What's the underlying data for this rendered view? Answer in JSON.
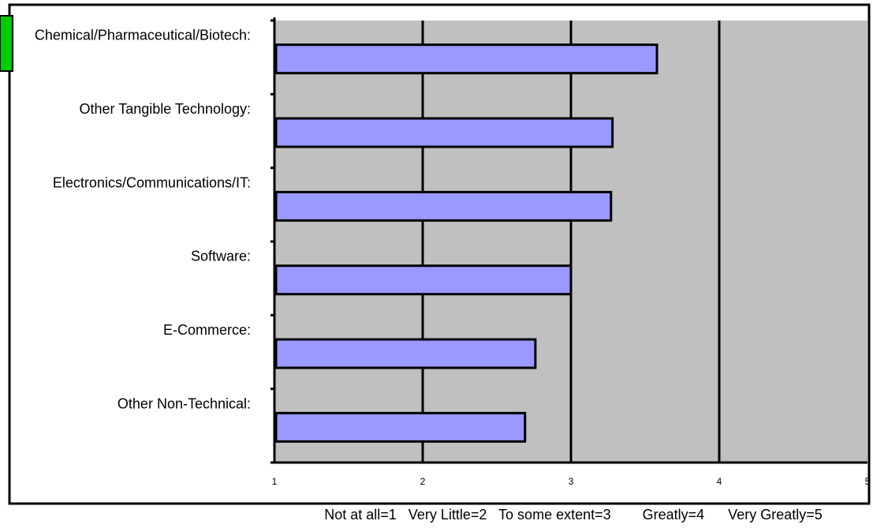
{
  "colors": {
    "plot_bg": "#c0c0c0",
    "bar_fill": "#9999ff",
    "bar_stroke": "#000000",
    "accent_tab": "#00cc00",
    "frame": "#000000"
  },
  "chart_data": {
    "type": "bar",
    "orientation": "horizontal",
    "categories": [
      "Chemical/Pharmaceutical/Biotech:",
      "Other Tangible Technology:",
      "Electronics/Communications/IT:",
      "Software:",
      "E-Commerce:",
      "Other Non-Technical:"
    ],
    "values": [
      3.58,
      3.28,
      3.27,
      3.0,
      2.76,
      2.69
    ],
    "xlim": [
      1,
      5
    ],
    "xticks": [
      "1",
      "2",
      "3",
      "4",
      "5"
    ],
    "scale_legend": "Not at all=1   Very Little=2   To some extent=3        Greatly=4      Very Greatly=5",
    "grid": "vertical",
    "legend": "none"
  }
}
